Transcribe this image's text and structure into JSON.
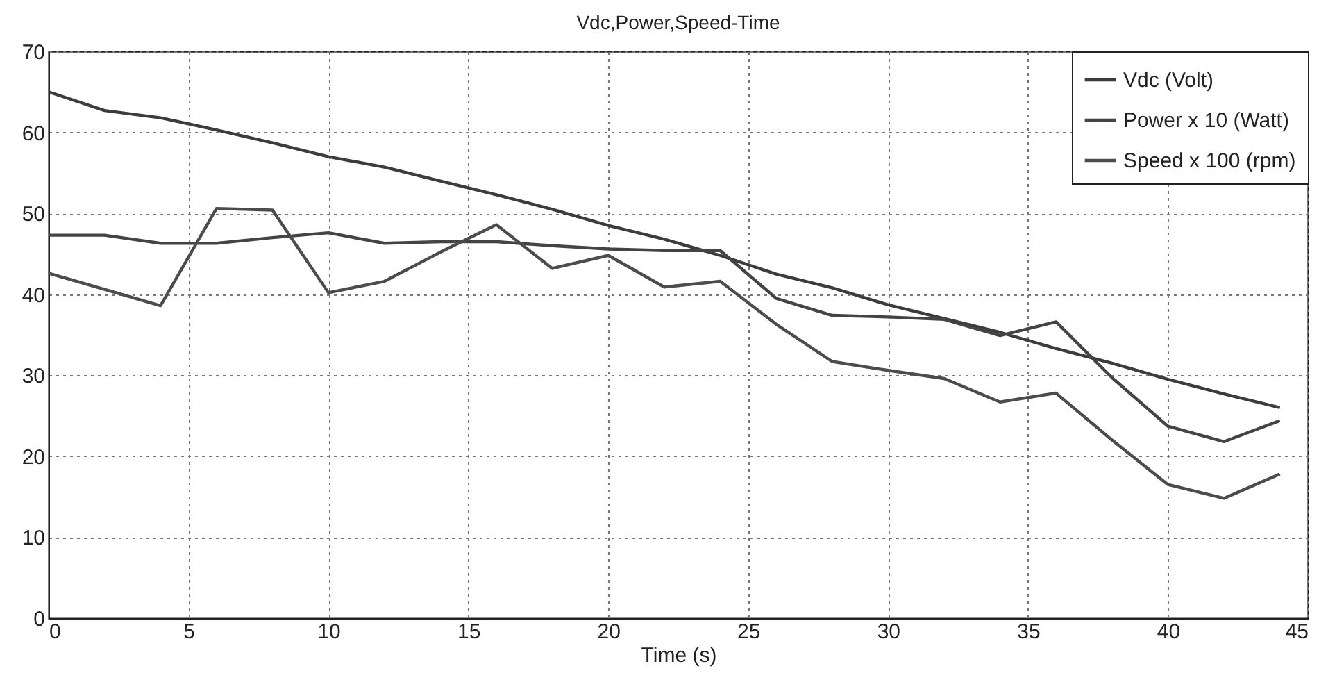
{
  "chart_data": {
    "type": "line",
    "title": "Vdc,Power,Speed-Time",
    "xlabel": "Time (s)",
    "x": [
      0,
      2,
      4,
      6,
      8,
      10,
      12,
      14,
      16,
      18,
      20,
      22,
      24,
      26,
      28,
      30,
      32,
      34,
      36,
      38,
      40,
      42,
      44
    ],
    "series": [
      {
        "name": "Vdc (Volt)",
        "color": "#3c3c3c",
        "values": [
          65,
          62.7,
          61.8,
          60.3,
          58.7,
          57,
          55.7,
          54,
          52.3,
          50.5,
          48.5,
          46.8,
          44.8,
          42.5,
          40.8,
          38.7,
          37,
          35.3,
          33.3,
          31.5,
          29.5,
          27.7,
          26
        ]
      },
      {
        "name": "Power x 10 (Watt)",
        "color": "#444444",
        "values": [
          47.3,
          47.3,
          46.3,
          46.3,
          47,
          47.6,
          46.3,
          46.5,
          46.5,
          46,
          45.6,
          45.4,
          45.4,
          39.5,
          37.4,
          37.2,
          36.9,
          34.9,
          36.6,
          29.7,
          23.7,
          21.8,
          24.4
        ]
      },
      {
        "name": "Speed x 100 (rpm)",
        "color": "#4c4c4c",
        "values": [
          42.6,
          40.6,
          38.6,
          50.6,
          50.4,
          40.2,
          41.6,
          45.2,
          48.6,
          43.2,
          44.8,
          40.9,
          41.6,
          36.3,
          31.7,
          30.6,
          29.6,
          26.7,
          27.8,
          22,
          16.5,
          14.8,
          17.8
        ]
      }
    ],
    "xlim": [
      0,
      45
    ],
    "xticks": [
      0,
      5,
      10,
      15,
      20,
      25,
      30,
      35,
      40,
      45
    ],
    "ylim": [
      0,
      70
    ],
    "yticks": [
      0,
      10,
      20,
      30,
      40,
      50,
      60,
      70
    ],
    "grid": true,
    "legend": "top right",
    "line_style": "solid",
    "marker": "none"
  }
}
